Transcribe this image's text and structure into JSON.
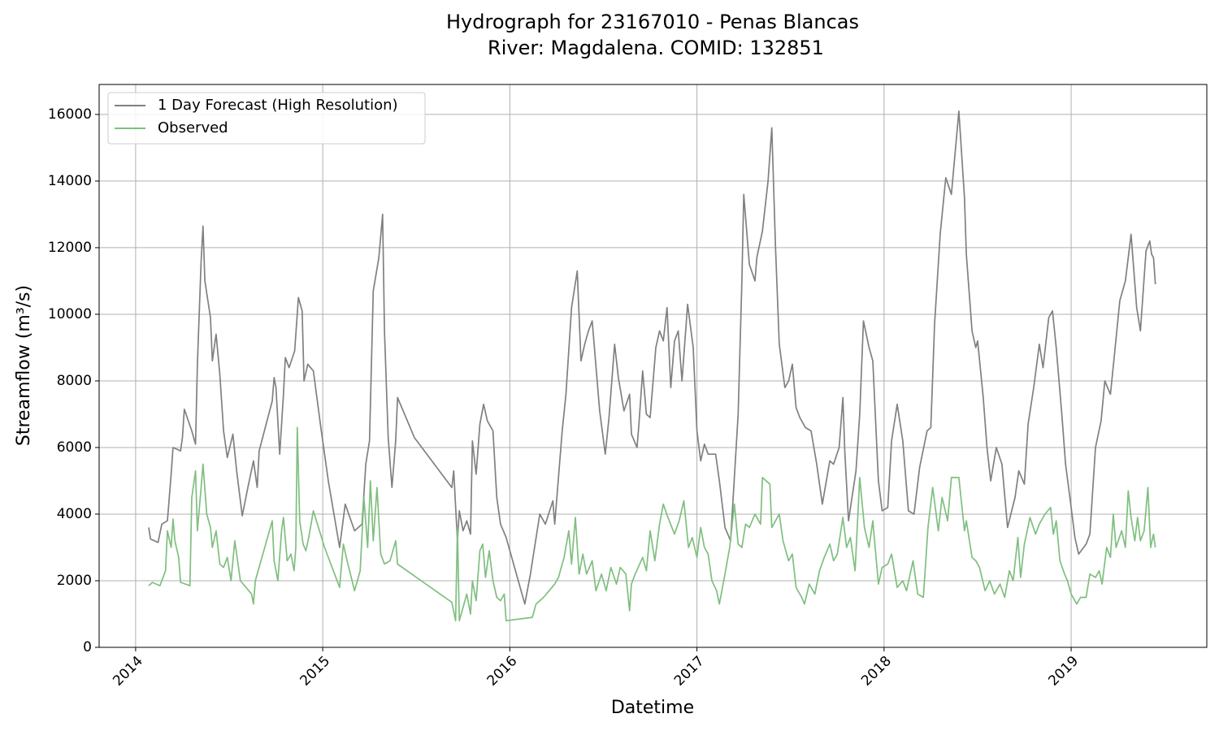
{
  "chart_data": {
    "type": "line",
    "title": "Hydrograph for 23167010 - Penas Blancas",
    "subtitle": "River: Magdalena. COMID: 132851",
    "x_label": "Datetime",
    "y_label": "Streamflow (m³/s)",
    "xlim": [
      2013.805,
      2019.725
    ],
    "ylim": [
      0,
      16900
    ],
    "xticks": [
      2014,
      2015,
      2016,
      2017,
      2018,
      2019
    ],
    "yticks": [
      0,
      2000,
      4000,
      6000,
      8000,
      10000,
      12000,
      14000,
      16000
    ],
    "grid": true,
    "legend": "upper-left",
    "series": [
      {
        "name": "1 Day Forecast (High Resolution)",
        "color": "#808080",
        "x": [
          2014.07,
          2014.08,
          2014.12,
          2014.14,
          2014.17,
          2014.19,
          2014.2,
          2014.22,
          2014.24,
          2014.25,
          2014.26,
          2014.3,
          2014.32,
          2014.33,
          2014.35,
          2014.36,
          2014.37,
          2014.4,
          2014.41,
          2014.43,
          2014.45,
          2014.47,
          2014.49,
          2014.52,
          2014.54,
          2014.57,
          2014.6,
          2014.63,
          2014.65,
          2014.66,
          2014.73,
          2014.74,
          2014.75,
          2014.77,
          2014.79,
          2014.8,
          2014.82,
          2014.85,
          2014.87,
          2014.89,
          2014.9,
          2014.92,
          2014.95,
          2014.99,
          2015.03,
          2015.09,
          2015.12,
          2015.17,
          2015.21,
          2015.23,
          2015.25,
          2015.27,
          2015.3,
          2015.32,
          2015.33,
          2015.35,
          2015.37,
          2015.39,
          2015.4,
          2015.49,
          2015.69,
          2015.7,
          2015.72,
          2015.73,
          2015.75,
          2015.77,
          2015.79,
          2015.8,
          2015.82,
          2015.84,
          2015.86,
          2015.88,
          2015.91,
          2015.93,
          2015.95,
          2015.98,
          2016.0,
          2016.08,
          2016.11,
          2016.16,
          2016.19,
          2016.23,
          2016.24,
          2016.28,
          2016.3,
          2016.33,
          2016.36,
          2016.38,
          2016.4,
          2016.42,
          2016.44,
          2016.48,
          2016.51,
          2016.53,
          2016.56,
          2016.58,
          2016.61,
          2016.64,
          2016.65,
          2016.68,
          2016.69,
          2016.71,
          2016.73,
          2016.75,
          2016.78,
          2016.8,
          2016.82,
          2016.84,
          2016.86,
          2016.88,
          2016.9,
          2016.92,
          2016.95,
          2016.98,
          2017.0,
          2017.02,
          2017.04,
          2017.06,
          2017.1,
          2017.12,
          2017.15,
          2017.18,
          2017.22,
          2017.24,
          2017.25,
          2017.28,
          2017.31,
          2017.32,
          2017.35,
          2017.38,
          2017.4,
          2017.42,
          2017.44,
          2017.47,
          2017.49,
          2017.51,
          2017.53,
          2017.55,
          2017.58,
          2017.61,
          2017.64,
          2017.67,
          2017.71,
          2017.73,
          2017.76,
          2017.78,
          2017.79,
          2017.81,
          2017.85,
          2017.87,
          2017.89,
          2017.92,
          2017.94,
          2017.97,
          2017.99,
          2018.02,
          2018.04,
          2018.07,
          2018.1,
          2018.13,
          2018.16,
          2018.19,
          2018.23,
          2018.25,
          2018.27,
          2018.3,
          2018.33,
          2018.36,
          2018.4,
          2018.43,
          2018.44,
          2018.47,
          2018.49,
          2018.5,
          2018.53,
          2018.55,
          2018.57,
          2018.6,
          2018.63,
          2018.66,
          2018.7,
          2018.72,
          2018.75,
          2018.77,
          2018.8,
          2018.83,
          2018.85,
          2018.88,
          2018.9,
          2018.92,
          2018.95,
          2018.97,
          2019.0,
          2019.02,
          2019.04,
          2019.08,
          2019.1,
          2019.13,
          2019.16,
          2019.18,
          2019.21,
          2019.23,
          2019.26,
          2019.29,
          2019.32,
          2019.35,
          2019.37,
          2019.4,
          2019.42,
          2019.43,
          2019.44,
          2019.45
        ],
        "values": [
          3600,
          3250,
          3150,
          3700,
          3800,
          5200,
          6000,
          5950,
          5900,
          6300,
          7150,
          6500,
          6100,
          8500,
          11600,
          12650,
          11000,
          9900,
          8600,
          9400,
          8200,
          6500,
          5700,
          6400,
          5300,
          3950,
          4800,
          5600,
          4800,
          5900,
          7400,
          8100,
          7800,
          5800,
          7600,
          8700,
          8400,
          8900,
          10500,
          10100,
          8000,
          8500,
          8300,
          6600,
          5000,
          3000,
          4300,
          3500,
          3700,
          5500,
          6200,
          10700,
          11700,
          13000,
          9500,
          6300,
          4800,
          6200,
          7500,
          6300,
          4800,
          5300,
          3200,
          4100,
          3500,
          3800,
          3400,
          6200,
          5200,
          6700,
          7300,
          6800,
          6500,
          4500,
          3700,
          3300,
          2900,
          1300,
          2200,
          4000,
          3700,
          4400,
          3700,
          6500,
          7600,
          10200,
          11300,
          8600,
          9100,
          9500,
          9800,
          7100,
          5800,
          6900,
          9100,
          8100,
          7100,
          7600,
          6400,
          6000,
          6700,
          8300,
          7000,
          6900,
          9000,
          9500,
          9200,
          10200,
          7800,
          9200,
          9500,
          8000,
          10300,
          9000,
          6500,
          5600,
          6100,
          5800,
          5800,
          5000,
          3600,
          3200,
          7000,
          11000,
          13600,
          11500,
          11000,
          11700,
          12500,
          14000,
          15600,
          12000,
          9100,
          7800,
          8000,
          8500,
          7200,
          6900,
          6600,
          6500,
          5500,
          4300,
          5600,
          5500,
          6000,
          7500,
          5900,
          3800,
          5300,
          7000,
          9800,
          9000,
          8600,
          5000,
          4100,
          4200,
          6200,
          7300,
          6200,
          4100,
          4000,
          5400,
          6500,
          6600,
          9700,
          12400,
          14100,
          13600,
          16100,
          13500,
          11800,
          9500,
          9000,
          9200,
          7500,
          6000,
          5000,
          6000,
          5500,
          3600,
          4500,
          5300,
          4900,
          6700,
          7800,
          9100,
          8400,
          9900,
          10100,
          9000,
          7000,
          5500,
          4200,
          3300,
          2800,
          3100,
          3400,
          6000,
          6800,
          8000,
          7600,
          8700,
          10400,
          11000,
          12400,
          10200,
          9500,
          11900,
          12200,
          11800,
          11700,
          10900
        ]
      },
      {
        "name": "Observed",
        "color": "#7fbf7f",
        "x": [
          2014.07,
          2014.09,
          2014.11,
          2014.13,
          2014.16,
          2014.17,
          2014.19,
          2014.2,
          2014.21,
          2014.23,
          2014.24,
          2014.29,
          2014.3,
          2014.32,
          2014.33,
          2014.35,
          2014.36,
          2014.38,
          2014.4,
          2014.41,
          2014.43,
          2014.45,
          2014.47,
          2014.49,
          2014.51,
          2014.53,
          2014.56,
          2014.62,
          2014.63,
          2014.64,
          2014.73,
          2014.74,
          2014.76,
          2014.78,
          2014.79,
          2014.81,
          2014.83,
          2014.847,
          2014.856,
          2014.864,
          2014.877,
          2014.895,
          2014.91,
          2014.925,
          2014.95,
          2015.01,
          2015.09,
          2015.11,
          2015.13,
          2015.17,
          2015.2,
          2015.22,
          2015.24,
          2015.255,
          2015.27,
          2015.29,
          2015.31,
          2015.33,
          2015.36,
          2015.39,
          2015.4,
          2015.69,
          2015.71,
          2015.72,
          2015.73,
          2015.75,
          2015.77,
          2015.79,
          2015.8,
          2015.82,
          2015.84,
          2015.855,
          2015.87,
          2015.89,
          2015.91,
          2015.93,
          2015.95,
          2015.97,
          2015.98,
          2016.12,
          2016.14,
          2016.18,
          2016.21,
          2016.24,
          2016.26,
          2016.29,
          2016.315,
          2016.33,
          2016.35,
          2016.37,
          2016.39,
          2016.41,
          2016.44,
          2016.46,
          2016.49,
          2016.515,
          2016.54,
          2016.57,
          2016.59,
          2016.62,
          2016.64,
          2016.65,
          2016.67,
          2016.71,
          2016.73,
          2016.75,
          2016.775,
          2016.8,
          2016.82,
          2016.845,
          2016.88,
          2016.905,
          2016.93,
          2016.955,
          2016.975,
          2017.0,
          2017.02,
          2017.04,
          2017.06,
          2017.08,
          2017.105,
          2017.12,
          2017.15,
          2017.175,
          2017.2,
          2017.22,
          2017.24,
          2017.26,
          2017.28,
          2017.31,
          2017.34,
          2017.35,
          2017.39,
          2017.4,
          2017.44,
          2017.46,
          2017.49,
          2017.51,
          2017.53,
          2017.56,
          2017.575,
          2017.6,
          2017.63,
          2017.655,
          2017.68,
          2017.71,
          2017.73,
          2017.75,
          2017.78,
          2017.8,
          2017.82,
          2017.845,
          2017.87,
          2017.895,
          2017.92,
          2017.94,
          2017.97,
          2017.99,
          2018.02,
          2018.04,
          2018.07,
          2018.1,
          2018.12,
          2018.155,
          2018.18,
          2018.21,
          2018.235,
          2018.26,
          2018.29,
          2018.31,
          2018.34,
          2018.36,
          2018.4,
          2018.43,
          2018.44,
          2018.47,
          2018.49,
          2018.51,
          2018.54,
          2018.565,
          2018.59,
          2018.62,
          2018.645,
          2018.67,
          2018.69,
          2018.715,
          2018.73,
          2018.75,
          2018.765,
          2018.78,
          2018.81,
          2018.83,
          2018.86,
          2018.89,
          2018.905,
          2018.92,
          2018.94,
          2018.965,
          2018.98,
          2019.0,
          2019.03,
          2019.05,
          2019.08,
          2019.1,
          2019.13,
          2019.15,
          2019.165,
          2019.19,
          2019.21,
          2019.225,
          2019.24,
          2019.27,
          2019.29,
          2019.305,
          2019.32,
          2019.34,
          2019.355,
          2019.37,
          2019.39,
          2019.41,
          2019.425,
          2019.44,
          2019.45
        ],
        "values": [
          1850,
          1950,
          1900,
          1850,
          2300,
          3500,
          3000,
          3850,
          3200,
          2700,
          1950,
          1850,
          4500,
          5300,
          3500,
          4800,
          5500,
          4000,
          3600,
          3000,
          3500,
          2500,
          2400,
          2700,
          2000,
          3200,
          2000,
          1600,
          1300,
          2000,
          3800,
          2600,
          2000,
          3500,
          3900,
          2600,
          2800,
          2300,
          3000,
          6600,
          3800,
          3100,
          2900,
          3300,
          4100,
          3000,
          1800,
          3100,
          2600,
          1700,
          2300,
          4500,
          3000,
          5000,
          3200,
          4800,
          2800,
          2500,
          2600,
          3200,
          2500,
          1350,
          800,
          3600,
          800,
          1200,
          1600,
          1000,
          2000,
          1400,
          2900,
          3100,
          2100,
          2900,
          2000,
          1500,
          1400,
          1600,
          800,
          900,
          1300,
          1500,
          1700,
          1900,
          2100,
          2700,
          3500,
          2500,
          3900,
          2200,
          2800,
          2200,
          2600,
          1700,
          2200,
          1700,
          2400,
          1900,
          2400,
          2200,
          1100,
          1900,
          2200,
          2700,
          2300,
          3500,
          2600,
          3700,
          4300,
          3900,
          3400,
          3800,
          4400,
          3000,
          3300,
          2700,
          3600,
          3000,
          2800,
          2000,
          1700,
          1300,
          2200,
          3000,
          4300,
          3100,
          3000,
          3700,
          3600,
          4000,
          3700,
          5100,
          4900,
          3600,
          4000,
          3200,
          2600,
          2800,
          1800,
          1500,
          1300,
          1900,
          1600,
          2300,
          2700,
          3100,
          2600,
          2800,
          3900,
          3000,
          3300,
          2300,
          5100,
          3600,
          3000,
          3800,
          1900,
          2400,
          2500,
          2800,
          1800,
          2000,
          1700,
          2600,
          1600,
          1500,
          3600,
          4800,
          3500,
          4500,
          3800,
          5100,
          5100,
          3500,
          3800,
          2700,
          2600,
          2400,
          1700,
          2000,
          1600,
          1900,
          1500,
          2300,
          2000,
          3300,
          2100,
          3100,
          3500,
          3900,
          3400,
          3700,
          4000,
          4200,
          3400,
          3800,
          2600,
          2200,
          2000,
          1600,
          1300,
          1500,
          1500,
          2200,
          2100,
          2300,
          1900,
          3000,
          2700,
          4000,
          3000,
          3500,
          3000,
          4700,
          3900,
          3200,
          3900,
          3200,
          3500,
          4800,
          3000,
          3400,
          3000
        ]
      }
    ]
  }
}
